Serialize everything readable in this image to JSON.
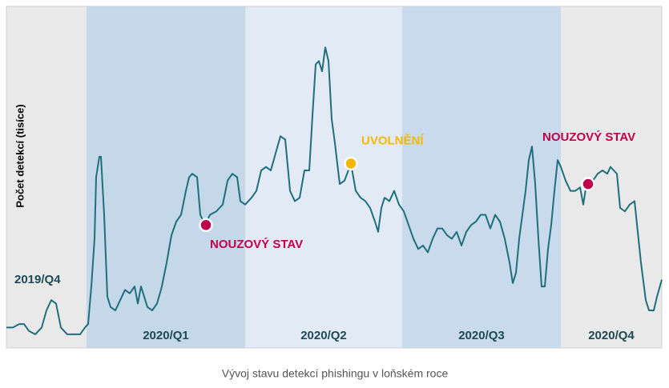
{
  "chart_data": {
    "type": "line",
    "y_label": "Počet detekcí (tisíce)",
    "caption": "Vývoj stavu detekcí phishingu v loňském roce",
    "xlim": [
      0,
      818
    ],
    "ylim": [
      0,
      100
    ],
    "color": "#1f6f7b",
    "x": [
      0,
      8,
      16,
      22,
      28,
      36,
      44,
      50,
      56,
      62,
      68,
      76,
      84,
      92,
      98,
      102,
      106,
      110,
      112,
      116,
      118,
      122,
      126,
      130,
      136,
      142,
      148,
      154,
      160,
      164,
      168,
      172,
      176,
      182,
      188,
      194,
      200,
      206,
      212,
      218,
      224,
      228,
      232,
      238,
      242,
      248,
      254,
      262,
      270,
      276,
      282,
      288,
      292,
      298,
      306,
      312,
      318,
      324,
      330,
      336,
      342,
      348,
      354,
      360,
      366,
      372,
      378,
      382,
      386,
      390,
      394,
      398,
      402,
      406,
      410,
      416,
      422,
      430,
      436,
      442,
      448,
      454,
      460,
      464,
      468,
      472,
      478,
      484,
      490,
      496,
      502,
      508,
      514,
      520,
      526,
      532,
      538,
      544,
      550,
      556,
      562,
      568,
      574,
      580,
      586,
      592,
      598,
      604,
      610,
      616,
      622,
      628,
      632,
      636,
      640,
      644,
      648,
      652,
      656,
      660,
      664,
      668,
      672,
      676,
      680,
      684,
      688,
      692,
      698,
      704,
      710,
      716,
      720,
      724,
      732,
      738,
      744,
      750,
      754,
      758,
      762,
      766,
      772,
      778,
      784,
      788,
      792,
      798,
      802,
      808,
      812,
      818
    ],
    "values": [
      6,
      6,
      7,
      7,
      5,
      4,
      6,
      11,
      14,
      13,
      6,
      4,
      4,
      4,
      6,
      7,
      18,
      32,
      50,
      56,
      56,
      39,
      15,
      12,
      11,
      14,
      17,
      16,
      18,
      13,
      18,
      15,
      12,
      11,
      13,
      18,
      25,
      33,
      37,
      39,
      46,
      50,
      51,
      50,
      39,
      36,
      39,
      40,
      42,
      49,
      51,
      50,
      43,
      42,
      44,
      46,
      52,
      53,
      52,
      57,
      62,
      61,
      46,
      43,
      44,
      52,
      52,
      68,
      83,
      84,
      81,
      88,
      84,
      67,
      60,
      48,
      49,
      54,
      46,
      44,
      43,
      41,
      37,
      34,
      41,
      44,
      43,
      46,
      42,
      40,
      36,
      32,
      29,
      30,
      28,
      32,
      35,
      35,
      33,
      32,
      34,
      30,
      34,
      36,
      37,
      39,
      39,
      35,
      39,
      37,
      32,
      25,
      19,
      22,
      32,
      39,
      46,
      55,
      59,
      48,
      32,
      18,
      18,
      29,
      36,
      46,
      55,
      53,
      49,
      46,
      46,
      47,
      42,
      48,
      49,
      51,
      52,
      51,
      53,
      52,
      51,
      41,
      40,
      42,
      43,
      34,
      25,
      14,
      11,
      11,
      15,
      20
    ],
    "bands": [
      {
        "label": "2019/Q4",
        "start": 0,
        "end": 100,
        "color": "#e9e9e9"
      },
      {
        "label": "2020/Q1",
        "start": 100,
        "end": 298,
        "color": "#c4d8ea"
      },
      {
        "label": "2020/Q2",
        "start": 298,
        "end": 494,
        "color": "#e2eaf6"
      },
      {
        "label": "2020/Q3",
        "start": 494,
        "end": 692,
        "color": "#c8daeb"
      },
      {
        "label": "2020/Q4",
        "start": 692,
        "end": 818,
        "color": "#e9e9e9"
      }
    ],
    "annotations": [
      {
        "text": "NOUZOVÝ STAV",
        "x": 249,
        "y": 36,
        "color": "#c0004a"
      },
      {
        "text": "UVOLNĚNÍ",
        "x": 430,
        "y": 54,
        "color": "#f5b800"
      },
      {
        "text": "NOUZOVÝ STAV",
        "x": 726,
        "y": 48,
        "color": "#c0004a"
      }
    ]
  }
}
